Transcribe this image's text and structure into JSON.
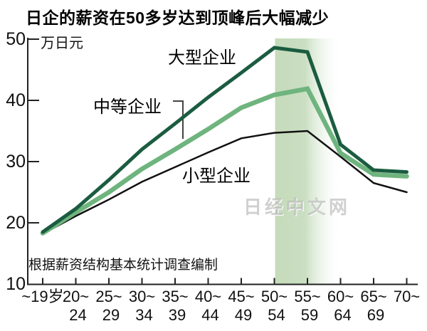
{
  "source_note": "根据薪资结构基本统计调查编制",
  "watermark": "日经中文网",
  "colors": {
    "large_series": "#1b5c40",
    "medium_series": "#6fb47e",
    "small_series": "#111111",
    "highlight_band": "#c5dbba",
    "axis": "#222222"
  },
  "chart_data": {
    "type": "line",
    "title": "日企的薪资在50多岁达到顶峰后大幅减少",
    "ylabel": "万日元",
    "xlabel": "",
    "ylim": [
      10,
      50
    ],
    "yticks": [
      50,
      40,
      30,
      20,
      10
    ],
    "grid": false,
    "legend_position": "inline-labels",
    "categories": [
      "~19岁",
      "20~24",
      "25~29",
      "30~34",
      "35~39",
      "40~44",
      "45~49",
      "50~54",
      "55~59",
      "60~64",
      "65~69",
      "70~"
    ],
    "tick_top_labels": [
      "~19岁",
      "20~",
      "25~",
      "30~",
      "35~",
      "40~",
      "45~",
      "50~",
      "55~",
      "60~",
      "65~",
      "70~"
    ],
    "tick_bottom_labels": [
      "",
      "24",
      "29",
      "34",
      "39",
      "44",
      "49",
      "54",
      "59",
      "64",
      "69",
      ""
    ],
    "series": [
      {
        "name": "大型企业",
        "color": "#1b5c40",
        "line_width": 5,
        "values": [
          18.5,
          22.3,
          27.0,
          32.0,
          36.2,
          40.5,
          44.5,
          48.6,
          47.9,
          32.8,
          28.6,
          28.3
        ]
      },
      {
        "name": "中等企业",
        "color": "#6fb47e",
        "line_width": 6.5,
        "values": [
          18.3,
          21.7,
          25.0,
          28.8,
          32.0,
          35.3,
          38.8,
          40.9,
          41.9,
          31.4,
          27.9,
          27.6
        ]
      },
      {
        "name": "小型企业",
        "color": "#111111",
        "line_width": 2.5,
        "values": [
          18.2,
          21.1,
          23.8,
          26.7,
          29.1,
          31.5,
          33.8,
          34.7,
          35.0,
          30.8,
          26.5,
          25.0
        ]
      }
    ],
    "highlight_band": {
      "start_category": "50~54",
      "end_category": "60~64",
      "style": "green fading to white on the right"
    }
  }
}
